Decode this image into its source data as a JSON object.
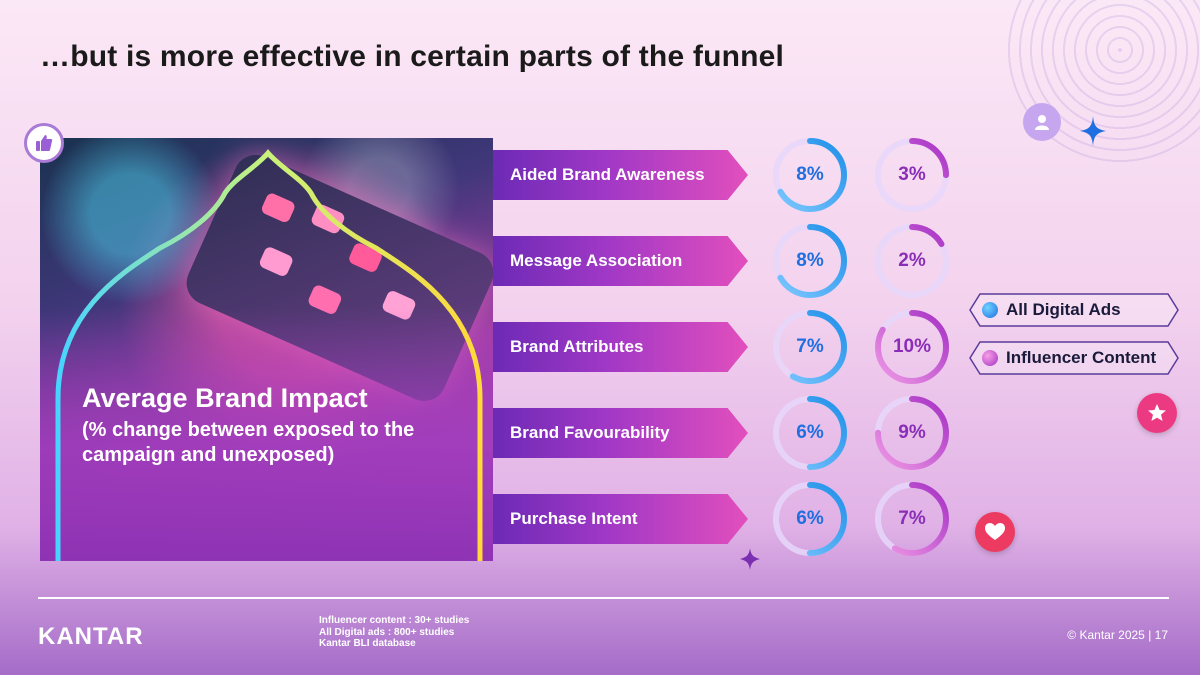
{
  "title": "…but is more effective in certain parts of the funnel",
  "card": {
    "heading": "Average Brand Impact",
    "subheading": "(% change between exposed to the campaign and unexposed)"
  },
  "chart_data": {
    "type": "ring",
    "categories": [
      "Aided Brand Awareness",
      "Message Association",
      "Brand Attributes",
      "Brand Favourability",
      "Purchase Intent"
    ],
    "series": [
      {
        "name": "All Digital Ads",
        "values": [
          8,
          8,
          7,
          6,
          6
        ],
        "labels": [
          "8%",
          "8%",
          "7%",
          "6%",
          "6%"
        ],
        "color": "#1f8fe8"
      },
      {
        "name": "Influencer Content",
        "values": [
          3,
          2,
          10,
          9,
          7
        ],
        "labels": [
          "3%",
          "2%",
          "10%",
          "9%",
          "7%"
        ],
        "color": "#b43cc8"
      }
    ],
    "legend_placement": "right"
  },
  "footer": {
    "logo": "KANTAR",
    "sources": [
      "Influencer content : 30+ studies",
      "All Digital ads : 800+ studies",
      "Kantar BLI database"
    ],
    "copyright": "© Kantar 2025 | 17"
  },
  "colors": {
    "digital": "#1f8fe8",
    "influencer": "#b43cc8",
    "banner_start": "#6c2ab5",
    "banner_end": "#e24fbd"
  },
  "icons": [
    "thumbs-up-icon",
    "user-icon",
    "sparkle-icon",
    "star-icon",
    "heart-icon"
  ]
}
